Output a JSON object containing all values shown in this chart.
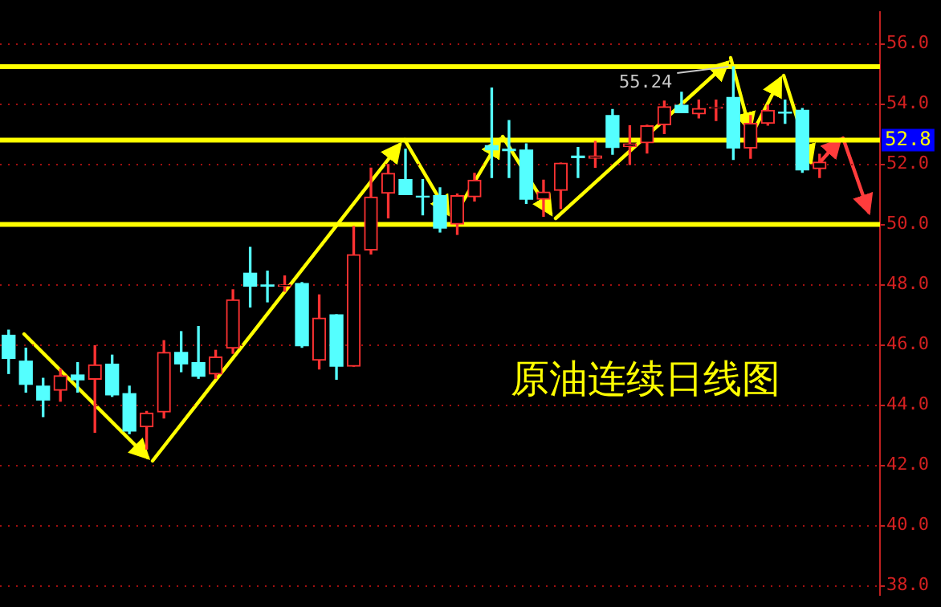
{
  "chart_data": {
    "type": "candlestick",
    "title": "原油连续日线图",
    "categories": [
      null,
      null,
      null,
      null,
      null,
      null,
      null,
      null,
      null,
      null,
      null,
      null,
      null,
      null,
      null,
      null,
      null,
      null,
      null,
      null,
      null,
      null,
      null,
      null,
      null,
      null,
      null,
      null,
      null,
      null,
      null,
      null,
      null,
      null,
      null,
      null,
      null,
      null,
      null,
      null,
      null,
      null,
      null,
      null,
      null,
      null,
      null,
      null,
      null,
      null,
      null
    ],
    "ohlc": [
      [
        46.32,
        46.49,
        45.05,
        45.55
      ],
      [
        45.46,
        45.89,
        44.43,
        44.69
      ],
      [
        44.63,
        44.89,
        43.62,
        44.17
      ],
      [
        44.49,
        45.2,
        44.13,
        44.98
      ],
      [
        45.0,
        45.41,
        44.43,
        44.84
      ],
      [
        44.86,
        45.97,
        43.1,
        45.34
      ],
      [
        45.36,
        45.66,
        44.29,
        44.34
      ],
      [
        44.38,
        44.63,
        43.05,
        43.14
      ],
      [
        43.28,
        43.79,
        42.54,
        43.74
      ],
      [
        43.77,
        46.14,
        43.57,
        45.75
      ],
      [
        45.75,
        46.44,
        45.11,
        45.37
      ],
      [
        45.41,
        46.61,
        44.89,
        44.96
      ],
      [
        45.03,
        45.82,
        44.89,
        45.6
      ],
      [
        45.89,
        47.83,
        45.72,
        47.5
      ],
      [
        48.38,
        49.24,
        47.26,
        47.95
      ],
      [
        47.99,
        48.45,
        47.43,
        47.95
      ],
      [
        47.95,
        48.29,
        47.78,
        47.99
      ],
      [
        48.04,
        48.07,
        45.92,
        45.97
      ],
      [
        45.49,
        47.66,
        45.2,
        46.89
      ],
      [
        47.0,
        47.0,
        44.86,
        45.29
      ],
      [
        45.29,
        49.93,
        45.29,
        49.0
      ],
      [
        49.15,
        51.87,
        49.02,
        50.91
      ],
      [
        51.04,
        51.99,
        50.22,
        51.7
      ],
      [
        51.49,
        52.5,
        50.99,
        50.99
      ],
      [
        50.94,
        51.49,
        50.32,
        50.91
      ],
      [
        50.96,
        51.22,
        49.75,
        49.88
      ],
      [
        50.01,
        51.01,
        49.67,
        50.96
      ],
      [
        50.92,
        51.7,
        50.78,
        51.47
      ],
      [
        52.62,
        54.53,
        51.56,
        52.48
      ],
      [
        52.5,
        53.45,
        51.56,
        52.45
      ],
      [
        52.47,
        52.68,
        50.7,
        50.84
      ],
      [
        50.84,
        51.47,
        50.27,
        51.08
      ],
      [
        51.13,
        52.04,
        50.53,
        52.04
      ],
      [
        52.27,
        52.56,
        51.56,
        52.22
      ],
      [
        52.2,
        52.76,
        51.9,
        52.28
      ],
      [
        53.62,
        53.82,
        52.33,
        52.56
      ],
      [
        52.59,
        53.28,
        51.99,
        52.68
      ],
      [
        52.71,
        53.3,
        52.37,
        53.28
      ],
      [
        53.31,
        54.1,
        53.02,
        53.91
      ],
      [
        53.96,
        54.39,
        53.71,
        53.71
      ],
      [
        53.67,
        54.13,
        53.54,
        53.85
      ],
      [
        53.86,
        54.13,
        53.45,
        53.9
      ],
      [
        54.22,
        55.24,
        52.16,
        52.54
      ],
      [
        52.54,
        53.62,
        52.2,
        53.36
      ],
      [
        53.36,
        53.96,
        53.3,
        53.79
      ],
      [
        53.73,
        54.13,
        53.36,
        53.7
      ],
      [
        53.79,
        53.85,
        51.73,
        51.81
      ],
      [
        51.85,
        52.33,
        51.56,
        52.07
      ],
      null,
      null,
      null
    ],
    "colors": [
      "#54ffff",
      "#54ffff",
      "#54ffff",
      "#ff3232",
      "#54ffff",
      "#ff3232",
      "#54ffff",
      "#54ffff",
      "#ff3232",
      "#ff3232",
      "#54ffff",
      "#54ffff",
      "#ff3232",
      "#ff3232",
      "#54ffff",
      "#54ffff",
      "#ff3232",
      "#54ffff",
      "#ff3232",
      "#54ffff",
      "#ff3232",
      "#ff3232",
      "#ff3232",
      "#54ffff",
      "#54ffff",
      "#54ffff",
      "#ff3232",
      "#ff3232",
      "#54ffff",
      "#54ffff",
      "#54ffff",
      "#ff3232",
      "#ff3232",
      "#54ffff",
      "#ff3232",
      "#54ffff",
      "#ff3232",
      "#ff3232",
      "#ff3232",
      "#54ffff",
      "#ff3232",
      "#ff3232",
      "#54ffff",
      "#ff3232",
      "#ff3232",
      "#54ffff",
      "#54ffff",
      "#ff3232",
      null,
      null,
      null
    ],
    "ylim": [
      37.7,
      57.05
    ],
    "yticks": [
      {
        "value": 38,
        "label": "38.0"
      },
      {
        "value": 40,
        "label": "40.0"
      },
      {
        "value": 42,
        "label": "42.0"
      },
      {
        "value": 44,
        "label": "44.0"
      },
      {
        "value": 46,
        "label": "46.0"
      },
      {
        "value": 48,
        "label": "48.0"
      },
      {
        "value": 50,
        "label": "50.0"
      },
      {
        "value": 52,
        "label": "52.0"
      },
      {
        "value": 54,
        "label": "54.0"
      },
      {
        "value": 56,
        "label": "56.0"
      }
    ],
    "grid": "y",
    "tick_labels": "y",
    "ref_lines": [
      {
        "axis": "y",
        "value": 55.24,
        "color": "#ffff00"
      },
      {
        "axis": "y",
        "value": 52.8,
        "label": "52.8",
        "color": "#ffff00"
      },
      {
        "axis": "y",
        "value": 50.0,
        "color": "#ffff00"
      }
    ],
    "annotations": [
      {
        "text": "55.24",
        "y": 55.24
      }
    ]
  }
}
